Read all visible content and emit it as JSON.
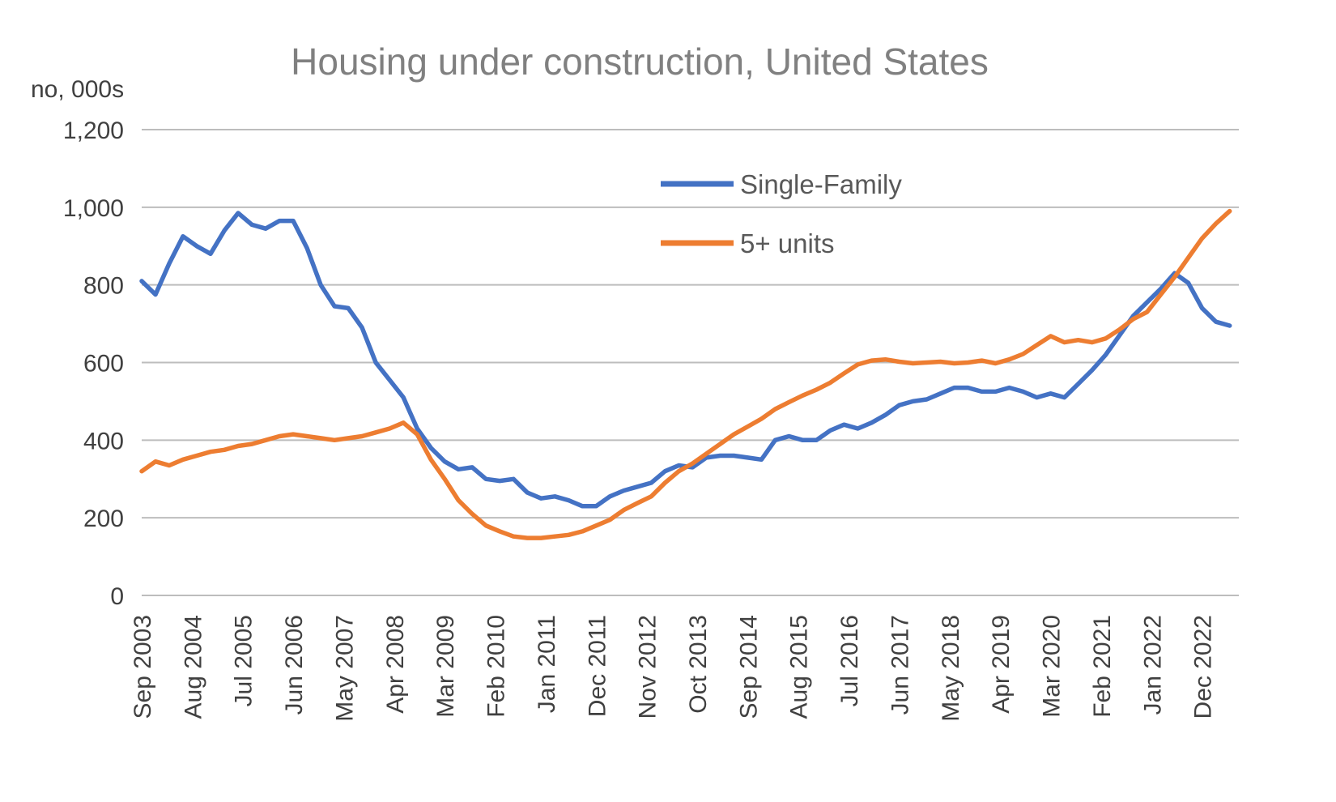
{
  "title": "Housing under construction, United States",
  "colors": {
    "single_family": "#4472C4",
    "five_plus_units": "#ED7D31",
    "gridline": "#BDBDBD",
    "tick_text": "#404040",
    "legend_text": "#595959",
    "title_text": "#808080",
    "background": "#FFFFFF"
  },
  "legend": {
    "position": "inside-top-center",
    "entries": [
      "Single-Family",
      "5+ units"
    ]
  },
  "chart_data": {
    "type": "line",
    "title": "Housing under construction, United States",
    "ylabel": "no, 000s",
    "xlabel": "",
    "grid": true,
    "ylim": [
      0,
      1200
    ],
    "yticks": [
      0,
      200,
      400,
      600,
      800,
      1000,
      1200
    ],
    "ytick_labels": [
      "0",
      "200",
      "400",
      "600",
      "800",
      "1,000",
      "1,200"
    ],
    "x_tick_labels": [
      "Sep 2003",
      "Aug 2004",
      "Jul 2005",
      "Jun 2006",
      "May 2007",
      "Apr 2008",
      "Mar 2009",
      "Feb 2010",
      "Jan 2011",
      "Dec 2011",
      "Nov 2012",
      "Oct 2013",
      "Sep 2014",
      "Aug 2015",
      "Jul 2016",
      "Jun 2017",
      "May 2018",
      "Apr 2019",
      "Mar 2020",
      "Feb 2021",
      "Jan 2022",
      "Dec 2022"
    ],
    "x_tick_month_spacing": 11,
    "months_per_point": 3,
    "total_months": 240,
    "x": [
      "Sep 2003",
      "Dec 2003",
      "Mar 2004",
      "Jun 2004",
      "Sep 2004",
      "Dec 2004",
      "Mar 2005",
      "Jun 2005",
      "Sep 2005",
      "Dec 2005",
      "Mar 2006",
      "Jun 2006",
      "Sep 2006",
      "Dec 2006",
      "Mar 2007",
      "Jun 2007",
      "Sep 2007",
      "Dec 2007",
      "Mar 2008",
      "Jun 2008",
      "Sep 2008",
      "Dec 2008",
      "Mar 2009",
      "Jun 2009",
      "Sep 2009",
      "Dec 2009",
      "Mar 2010",
      "Jun 2010",
      "Sep 2010",
      "Dec 2010",
      "Mar 2011",
      "Jun 2011",
      "Sep 2011",
      "Dec 2011",
      "Mar 2012",
      "Jun 2012",
      "Sep 2012",
      "Dec 2012",
      "Mar 2013",
      "Jun 2013",
      "Sep 2013",
      "Dec 2013",
      "Mar 2014",
      "Jun 2014",
      "Sep 2014",
      "Dec 2014",
      "Mar 2015",
      "Jun 2015",
      "Sep 2015",
      "Dec 2015",
      "Mar 2016",
      "Jun 2016",
      "Sep 2016",
      "Dec 2016",
      "Mar 2017",
      "Jun 2017",
      "Sep 2017",
      "Dec 2017",
      "Mar 2018",
      "Jun 2018",
      "Sep 2018",
      "Dec 2018",
      "Mar 2019",
      "Jun 2019",
      "Sep 2019",
      "Dec 2019",
      "Mar 2020",
      "Jun 2020",
      "Sep 2020",
      "Dec 2020",
      "Mar 2021",
      "Jun 2021",
      "Sep 2021",
      "Dec 2021",
      "Mar 2022",
      "Jun 2022",
      "Sep 2022",
      "Dec 2022",
      "Mar 2023",
      "Jun 2023"
    ],
    "series": [
      {
        "name": "Single-Family",
        "color": "#4472C4",
        "values": [
          810,
          775,
          855,
          925,
          900,
          880,
          940,
          985,
          955,
          945,
          965,
          965,
          895,
          800,
          745,
          740,
          690,
          600,
          555,
          510,
          430,
          380,
          345,
          325,
          330,
          300,
          295,
          300,
          265,
          250,
          255,
          245,
          230,
          230,
          255,
          270,
          280,
          290,
          320,
          335,
          330,
          355,
          360,
          360,
          355,
          350,
          400,
          410,
          400,
          400,
          425,
          440,
          430,
          445,
          465,
          490,
          500,
          505,
          520,
          535,
          535,
          525,
          525,
          535,
          525,
          510,
          520,
          510,
          545,
          580,
          620,
          670,
          720,
          755,
          790,
          830,
          805,
          740,
          705,
          695
        ]
      },
      {
        "name": "5+ units",
        "color": "#ED7D31",
        "values": [
          320,
          345,
          335,
          350,
          360,
          370,
          375,
          385,
          390,
          400,
          410,
          415,
          410,
          405,
          400,
          405,
          410,
          420,
          430,
          445,
          415,
          350,
          300,
          245,
          210,
          180,
          165,
          152,
          148,
          148,
          152,
          156,
          165,
          180,
          195,
          220,
          238,
          255,
          290,
          320,
          340,
          365,
          390,
          415,
          435,
          455,
          480,
          498,
          515,
          530,
          548,
          572,
          595,
          605,
          608,
          602,
          598,
          600,
          602,
          598,
          600,
          605,
          598,
          608,
          622,
          645,
          668,
          652,
          658,
          652,
          662,
          685,
          712,
          730,
          775,
          820,
          870,
          920,
          958,
          990
        ]
      }
    ],
    "legend_position": "inside-top-center"
  }
}
